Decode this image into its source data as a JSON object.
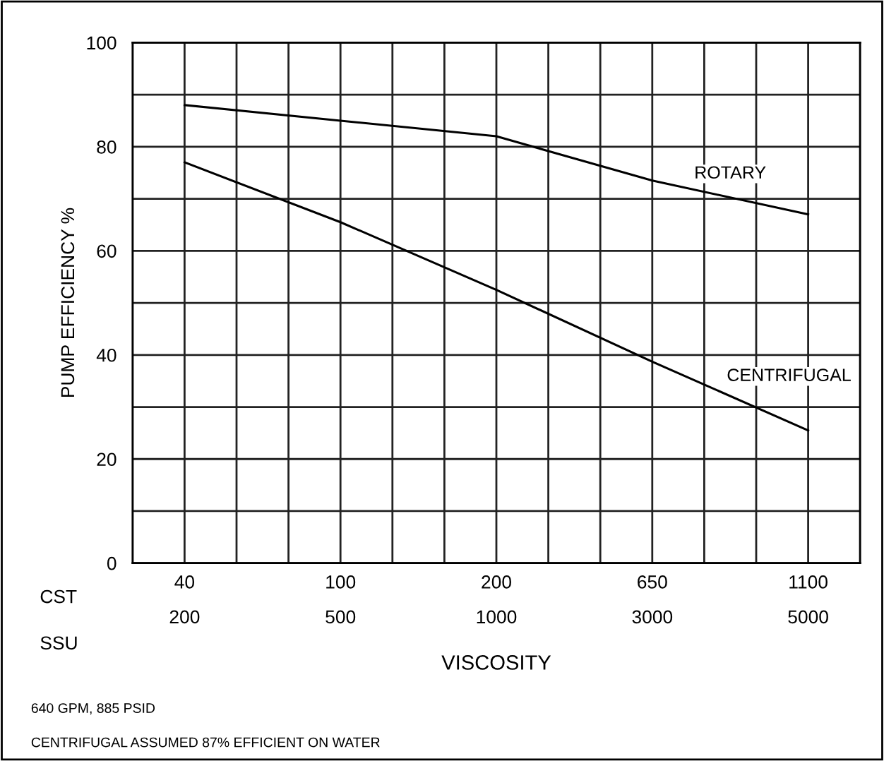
{
  "chart_data": {
    "type": "line",
    "ylabel": "PUMP EFFICIENCY %",
    "xlabel": "VISCOSITY",
    "categories": [
      "40\n200",
      "100\n500",
      "200\n1000",
      "650\n3000",
      "1100\n5000"
    ],
    "series": [
      {
        "name": "ROTARY",
        "color": "#000000",
        "values": [
          88,
          85,
          82,
          73.5,
          67
        ]
      },
      {
        "name": "CENTRIFUGAL",
        "color": "#000000",
        "values": [
          77,
          65.5,
          52.5,
          38.7,
          25.5
        ]
      }
    ],
    "ylim": [
      0,
      100
    ],
    "yticks": [
      0,
      20,
      40,
      60,
      80,
      100
    ],
    "grid": true,
    "marker": "none",
    "line_style": "solid",
    "annotations": [
      "CST",
      "SSU",
      "640 GPM, 885 PSID",
      "CENTRIFUGAL ASSUMED 87% EFFICIENT ON WATER"
    ]
  }
}
